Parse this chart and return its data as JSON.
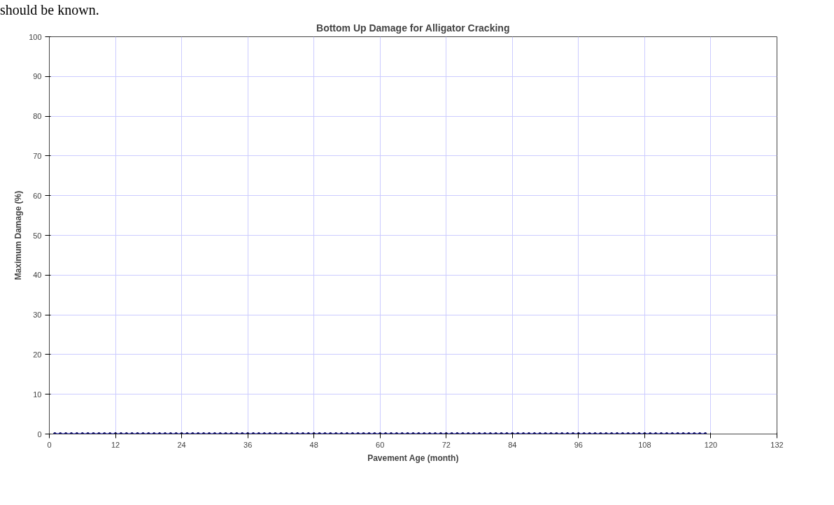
{
  "chart_data": {
    "type": "line",
    "title": "Bottom Up Damage for Alligator Cracking",
    "xlabel": "Pavement Age (month)",
    "ylabel": "Maximum Damage (%)",
    "annotations": [
      "should be known."
    ],
    "x": [
      1,
      2,
      3,
      4,
      5,
      6,
      7,
      8,
      9,
      10,
      11,
      12,
      13,
      14,
      15,
      16,
      17,
      18,
      19,
      20,
      21,
      22,
      23,
      24,
      25,
      26,
      27,
      28,
      29,
      30,
      31,
      32,
      33,
      34,
      35,
      36,
      37,
      38,
      39,
      40,
      41,
      42,
      43,
      44,
      45,
      46,
      47,
      48,
      49,
      50,
      51,
      52,
      53,
      54,
      55,
      56,
      57,
      58,
      59,
      60,
      61,
      62,
      63,
      64,
      65,
      66,
      67,
      68,
      69,
      70,
      71,
      72,
      73,
      74,
      75,
      76,
      77,
      78,
      79,
      80,
      81,
      82,
      83,
      84,
      85,
      86,
      87,
      88,
      89,
      90,
      91,
      92,
      93,
      94,
      95,
      96,
      97,
      98,
      99,
      100,
      101,
      102,
      103,
      104,
      105,
      106,
      107,
      108,
      109,
      110,
      111,
      112,
      113,
      114,
      115,
      116,
      117,
      118,
      119
    ],
    "series": [
      {
        "color": "#0000ff",
        "values": [
          0,
          0,
          0,
          0,
          0,
          0,
          0,
          0,
          0,
          0,
          0,
          0,
          0,
          0,
          0,
          0,
          0,
          0,
          0,
          0,
          0,
          0,
          0,
          0,
          0,
          0,
          0,
          0,
          0,
          0,
          0,
          0,
          0,
          0,
          0,
          0,
          0,
          0,
          0,
          0,
          0,
          0,
          0,
          0,
          0,
          0,
          0,
          0,
          0,
          0,
          0,
          0,
          0,
          0,
          0,
          0,
          0,
          0,
          0,
          0,
          0,
          0,
          0,
          0,
          0,
          0,
          0,
          0,
          0,
          0,
          0,
          0,
          0,
          0,
          0,
          0,
          0,
          0,
          0,
          0,
          0,
          0,
          0,
          0,
          0,
          0,
          0,
          0,
          0,
          0,
          0,
          0,
          0,
          0,
          0,
          0,
          0,
          0,
          0,
          0,
          0,
          0,
          0,
          0,
          0,
          0,
          0,
          0,
          0,
          0,
          0,
          0,
          0,
          0,
          0,
          0,
          0,
          0,
          0
        ]
      }
    ],
    "xlim": [
      0,
      132
    ],
    "xticks": [
      0,
      12,
      24,
      36,
      48,
      60,
      72,
      84,
      96,
      108,
      120,
      132
    ],
    "ylim": [
      0,
      100
    ],
    "yticks": [
      0,
      10,
      20,
      30,
      40,
      50,
      60,
      70,
      80,
      90,
      100
    ],
    "grid": true,
    "marker": "circle",
    "line_style": "solid"
  }
}
